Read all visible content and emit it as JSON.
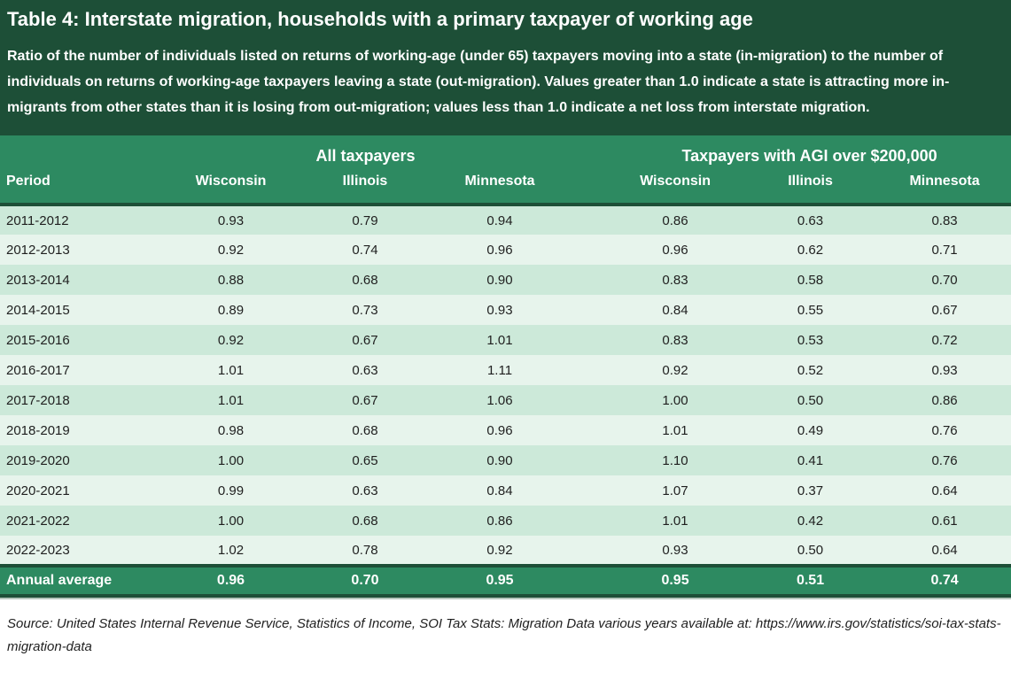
{
  "colors": {
    "dark_green": "#1d4f37",
    "medium_green": "#2d8a61",
    "row_mint_dark": "#cce9d9",
    "row_mint_light": "#e7f4ec",
    "rule_gray": "#b5c6bc",
    "text_dark": "#1f1f1f",
    "text_white": "#ffffff"
  },
  "header": {
    "title": "Table 4: Interstate migration, households with a primary taxpayer of working age",
    "description": "Ratio of the number of individuals listed on returns of working-age (under 65) taxpayers moving into a state (in-migration) to the number of individuals on returns of working-age taxpayers leaving a state (out-migration). Values greater than 1.0 indicate a state is attracting more in-migrants from other states than it is losing from out-migration; values less than 1.0 indicate a net loss from interstate migration."
  },
  "chart_data": {
    "type": "table",
    "title": "Table 4: Interstate migration, households with a primary taxpayer of working age",
    "column_groups": [
      "All taxpayers",
      "Taxpayers with AGI over $200,000"
    ],
    "columns": [
      "Period",
      "Wisconsin",
      "Illinois",
      "Minnesota",
      "Wisconsin",
      "Illinois",
      "Minnesota"
    ],
    "rows": [
      [
        "2011-2012",
        "0.93",
        "0.79",
        "0.94",
        "0.86",
        "0.63",
        "0.83"
      ],
      [
        "2012-2013",
        "0.92",
        "0.74",
        "0.96",
        "0.96",
        "0.62",
        "0.71"
      ],
      [
        "2013-2014",
        "0.88",
        "0.68",
        "0.90",
        "0.83",
        "0.58",
        "0.70"
      ],
      [
        "2014-2015",
        "0.89",
        "0.73",
        "0.93",
        "0.84",
        "0.55",
        "0.67"
      ],
      [
        "2015-2016",
        "0.92",
        "0.67",
        "1.01",
        "0.83",
        "0.53",
        "0.72"
      ],
      [
        "2016-2017",
        "1.01",
        "0.63",
        "1.11",
        "0.92",
        "0.52",
        "0.93"
      ],
      [
        "2017-2018",
        "1.01",
        "0.67",
        "1.06",
        "1.00",
        "0.50",
        "0.86"
      ],
      [
        "2018-2019",
        "0.98",
        "0.68",
        "0.96",
        "1.01",
        "0.49",
        "0.76"
      ],
      [
        "2019-2020",
        "1.00",
        "0.65",
        "0.90",
        "1.10",
        "0.41",
        "0.76"
      ],
      [
        "2020-2021",
        "0.99",
        "0.63",
        "0.84",
        "1.07",
        "0.37",
        "0.64"
      ],
      [
        "2021-2022",
        "1.00",
        "0.68",
        "0.86",
        "1.01",
        "0.42",
        "0.61"
      ],
      [
        "2022-2023",
        "1.02",
        "0.78",
        "0.92",
        "0.93",
        "0.50",
        "0.64"
      ]
    ],
    "footer_row": [
      "Annual average",
      "0.96",
      "0.70",
      "0.95",
      "0.95",
      "0.51",
      "0.74"
    ]
  },
  "source": "Source: United States Internal Revenue Service, Statistics of Income, SOI Tax Stats: Migration Data various years available at: https://www.irs.gov/statistics/soi-tax-stats-migration-data"
}
